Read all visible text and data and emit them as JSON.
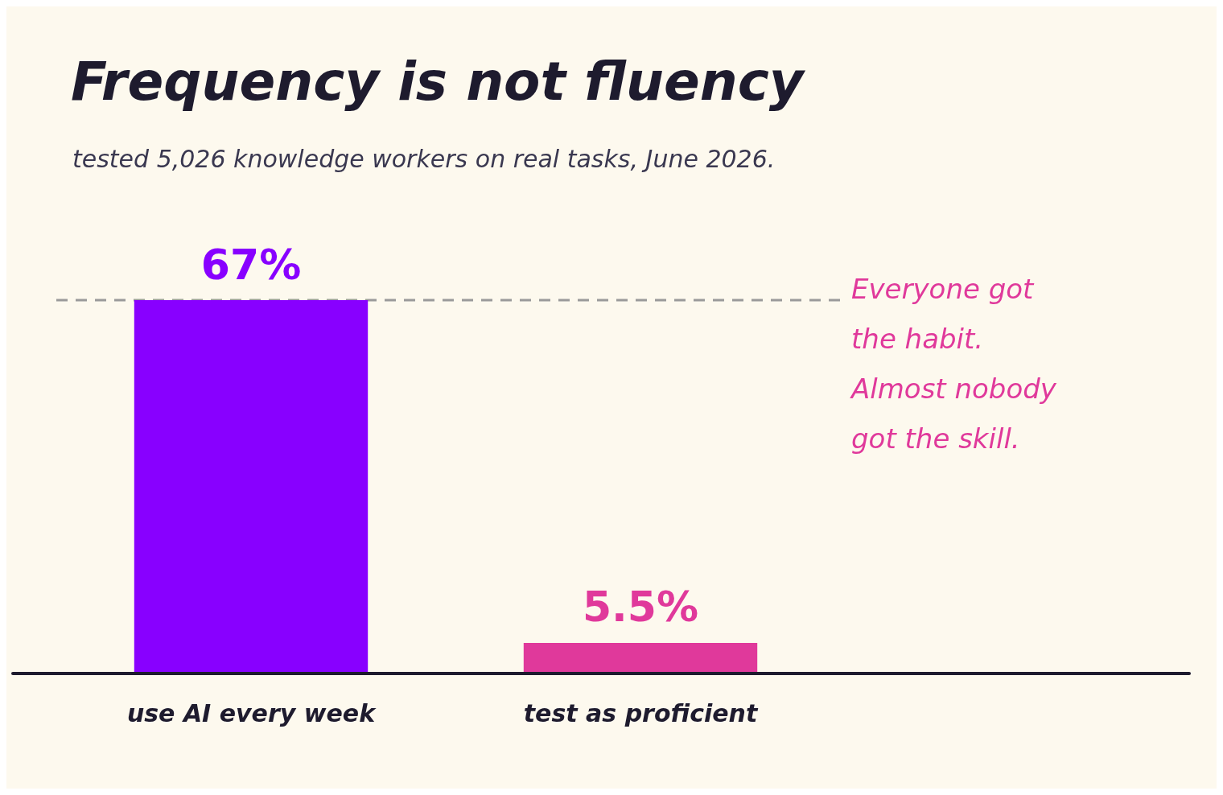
{
  "chart_data": {
    "type": "bar",
    "title": "Frequency is not fluency",
    "subtitle": "tested 5,026 knowledge workers on real tasks, June 2026.",
    "categories": [
      "use AI every week",
      "test as proficient"
    ],
    "values": [
      67,
      5.5
    ],
    "colors": [
      "#8800ff",
      "#e0399b"
    ],
    "value_labels": [
      "67%",
      "5.5%"
    ],
    "ref_lines": [
      {
        "axis": "y",
        "value": 67,
        "color": "#9a9a9a",
        "line_style": "dashed"
      }
    ],
    "annotations": [
      "Everyone got the habit. Almost nobody got the skill."
    ],
    "grid": false,
    "legend": false
  }
}
